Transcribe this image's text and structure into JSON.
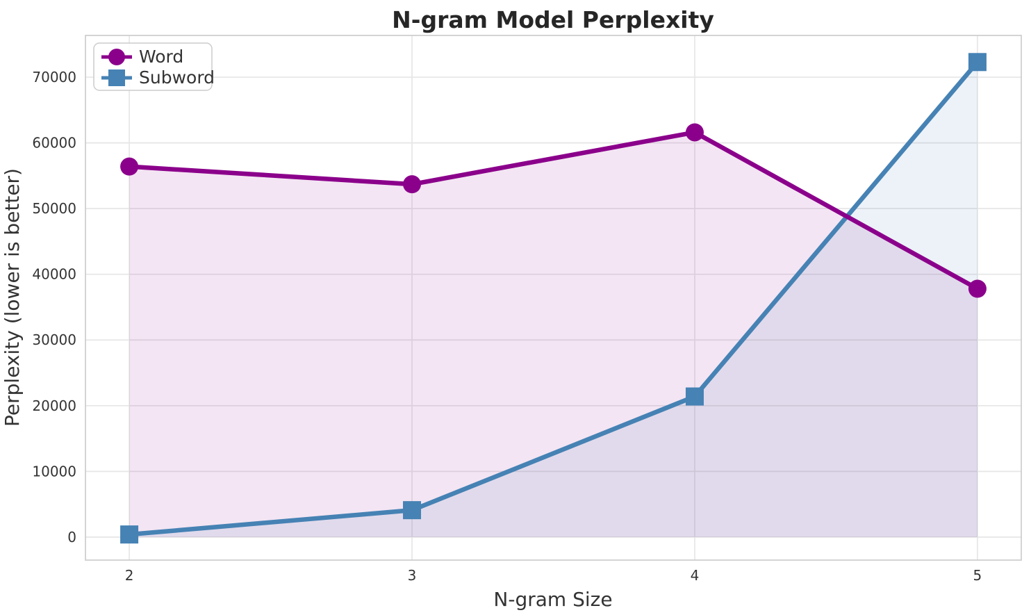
{
  "chart_data": {
    "type": "line",
    "title": "N-gram Model Perplexity",
    "xlabel": "N-gram Size",
    "ylabel": "Perplexity (lower is better)",
    "x": [
      2,
      3,
      4,
      5
    ],
    "x_tick_labels": [
      "2",
      "3",
      "4",
      "5"
    ],
    "y_ticks": [
      0,
      10000,
      20000,
      30000,
      40000,
      50000,
      60000,
      70000
    ],
    "y_tick_labels": [
      "0",
      "10000",
      "20000",
      "30000",
      "40000",
      "50000",
      "60000",
      "70000"
    ],
    "xlim": [
      1.845,
      5.155
    ],
    "ylim": [
      -3500,
      76350
    ],
    "grid": true,
    "baseline": 0,
    "legend": {
      "position": "upper-left",
      "entries": [
        "Word",
        "Subword"
      ]
    },
    "series": [
      {
        "name": "Word",
        "marker": "circle",
        "color": "#8B008B",
        "fill_opacity": 0.1,
        "values": [
          56400,
          53700,
          61600,
          37800
        ]
      },
      {
        "name": "Subword",
        "marker": "square",
        "color": "#4682B4",
        "fill_opacity": 0.1,
        "values": [
          400,
          4100,
          21400,
          72300
        ]
      }
    ]
  },
  "style": {
    "text_color": "#262626",
    "tick_color": "#333333",
    "grid_color": "#E6E6E6",
    "spine_color": "#CCCCCC",
    "legend_border": "#CCCCCC",
    "background": "#FFFFFF"
  }
}
